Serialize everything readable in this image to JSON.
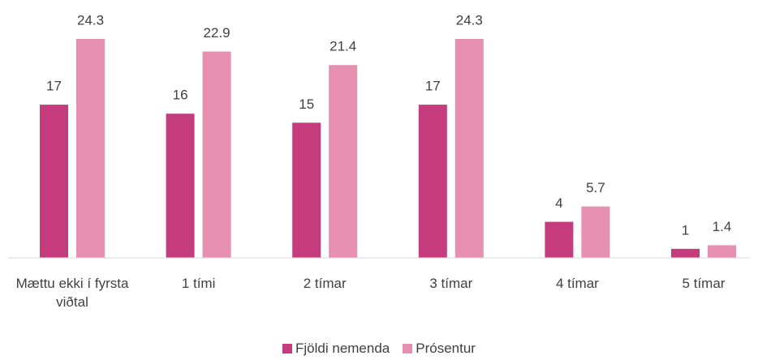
{
  "chart_data": {
    "type": "bar",
    "categories": [
      "Mættu ekki í fyrsta viðtal",
      "1 tími",
      "2 tímar",
      "3 tímar",
      "4 tímar",
      "5 tímar"
    ],
    "series": [
      {
        "name": "Fjöldi nemenda",
        "color": "#c43c7e",
        "values": [
          17,
          16,
          15,
          17,
          4,
          1
        ]
      },
      {
        "name": "Prósentur",
        "color": "#e68fb1",
        "values": [
          24.3,
          22.9,
          21.4,
          24.3,
          5.7,
          1.4
        ]
      }
    ],
    "ylim": [
      0,
      27
    ],
    "legend": "bottom"
  }
}
